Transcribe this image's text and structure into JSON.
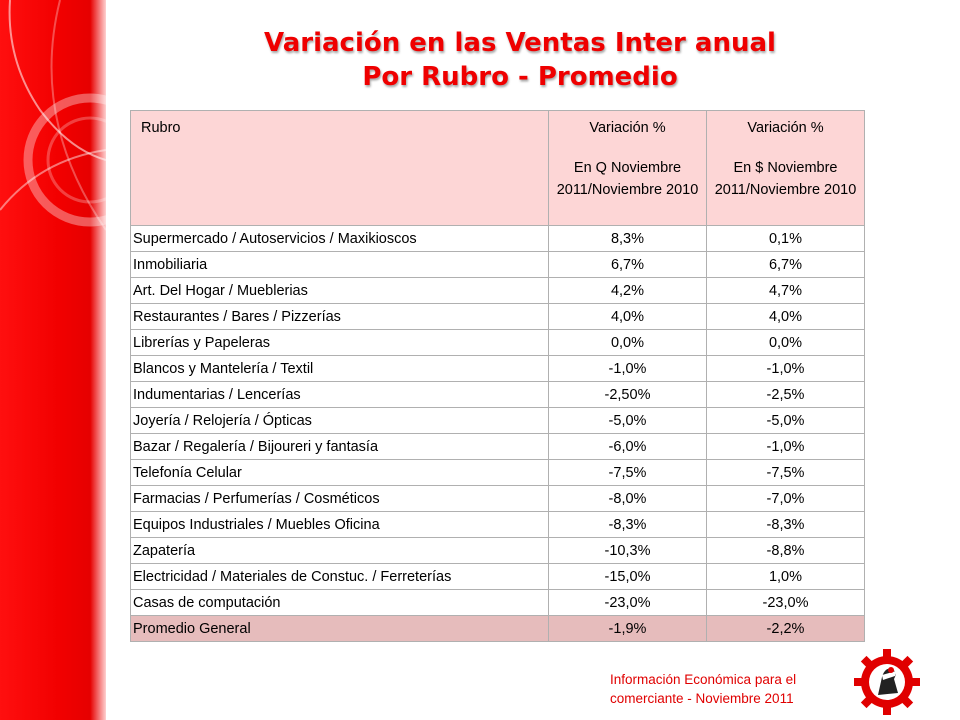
{
  "title": {
    "line1": "Variación en las Ventas Inter anual",
    "line2": "Por Rubro - Promedio"
  },
  "table": {
    "headers": {
      "rubro": "Rubro",
      "col_q_top": "Variación %",
      "col_q_sub": "En Q  Noviembre 2011/Noviembre 2010",
      "col_s_top": "Variación %",
      "col_s_sub": "En $  Noviembre 2011/Noviembre 2010"
    },
    "rows": [
      {
        "rubro": "Supermercado / Autoservicios / Maxikioscos",
        "q": "8,3%",
        "s": "0,1%"
      },
      {
        "rubro": "Inmobiliaria",
        "q": "6,7%",
        "s": "6,7%"
      },
      {
        "rubro": "Art. Del Hogar / Mueblerias",
        "q": "4,2%",
        "s": "4,7%"
      },
      {
        "rubro": "Restaurantes / Bares / Pizzerías",
        "q": "4,0%",
        "s": "4,0%"
      },
      {
        "rubro": "Librerías y Papeleras",
        "q": "0,0%",
        "s": "0,0%"
      },
      {
        "rubro": "Blancos y Mantelería / Textil",
        "q": "-1,0%",
        "s": "-1,0%"
      },
      {
        "rubro": "Indumentarias / Lencerías",
        "q": "-2,50%",
        "s": "-2,5%"
      },
      {
        "rubro": "Joyería / Relojería / Ópticas",
        "q": "-5,0%",
        "s": "-5,0%"
      },
      {
        "rubro": "Bazar / Regalería / Bijoureri  y fantasía",
        "q": "-6,0%",
        "s": "-1,0%"
      },
      {
        "rubro": "Telefonía Celular",
        "q": "-7,5%",
        "s": "-7,5%"
      },
      {
        "rubro": "Farmacias / Perfumerías / Cosméticos",
        "q": "-8,0%",
        "s": "-7,0%"
      },
      {
        "rubro": "Equipos Industriales / Muebles Oficina",
        "q": "-8,3%",
        "s": "-8,3%"
      },
      {
        "rubro": "Zapatería",
        "q": "-10,3%",
        "s": "-8,8%"
      },
      {
        "rubro": "Electricidad  / Materiales de Constuc. / Ferreterías",
        "q": "-15,0%",
        "s": "1,0%"
      },
      {
        "rubro": "Casas de computación",
        "q": "-23,0%",
        "s": "-23,0%"
      }
    ],
    "total": {
      "rubro": "Promedio General",
      "q": "-1,9%",
      "s": "-2,2%"
    }
  },
  "footer": {
    "line1": "Información Económica para el",
    "line2": "comerciante -  Noviembre  2011"
  },
  "colors": {
    "accent_red": "#ef0000",
    "header_bg": "#fdd6d6",
    "total_bg": "#e6bcbc"
  },
  "logo": {
    "icon": "gear-figure-logo-icon"
  }
}
